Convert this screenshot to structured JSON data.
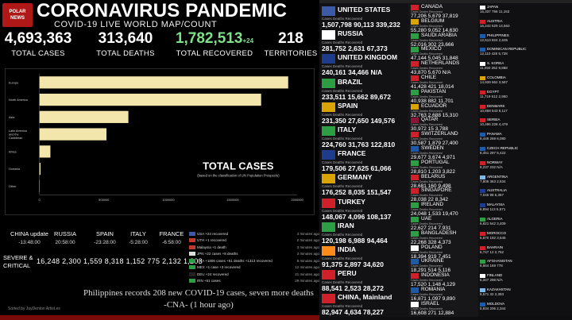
{
  "header": {
    "logo_text": "POLAR\nNEWS",
    "title": "CORONAVIRUS PANDEMIC",
    "subtitle": "COVID-19 LIVE WORLD MAP/COUNT"
  },
  "totals": {
    "cases": {
      "value": "4,693,363",
      "label": "TOTAL CASES"
    },
    "deaths": {
      "value": "313,640",
      "label": "TOTAL DEATHS"
    },
    "recovered": {
      "value": "1,782,513",
      "suffix": "+24",
      "label": "TOTAL RECOVERED"
    },
    "territories": {
      "value": "218",
      "label": "TERRITORIES"
    }
  },
  "chart_data": {
    "type": "bar",
    "orientation": "horizontal",
    "title": "TOTAL CASES",
    "subtitle": "(based on the classification of UN Population Prospects)",
    "categories": [
      "Europe",
      "North America",
      "Asia",
      "Latin America and the Caribbean",
      "Africa",
      "Oceania",
      "Other"
    ],
    "category_lines": [
      [
        "Europe"
      ],
      [
        "North America"
      ],
      [
        "Asia"
      ],
      [
        "Latin America",
        "and the",
        "Caribbean"
      ],
      [
        "Africa"
      ],
      [
        "Oceania"
      ],
      [
        "Other"
      ]
    ],
    "values": [
      1930000,
      1720000,
      690000,
      520000,
      85000,
      8500,
      700
    ],
    "xlim": [
      0,
      2000000
    ],
    "xticks": [
      "0",
      "500000",
      "1000000",
      "1500000",
      "2000000"
    ],
    "bar_color": "#f3e6ad",
    "grid": false
  },
  "updates": [
    {
      "country": "CHINA update",
      "time": "-13:48:00"
    },
    {
      "country": "RUSSIA",
      "time": "20:58:00"
    },
    {
      "country": "SPAIN",
      "time": "-23:28:00"
    },
    {
      "country": "ITALY",
      "time": "-5:28:00"
    },
    {
      "country": "FRANCE",
      "time": "-6:58:00"
    }
  ],
  "severe": {
    "label_line1": "SEVERE &",
    "label_line2": "CRITICAL",
    "values": "16,248  2,300  1,559  8,318  1,152  775  2,132  1,203"
  },
  "news": [
    {
      "text": "USA +24 recovered",
      "time": "4 minutes ago",
      "color": "#3c5aa6"
    },
    {
      "text": "UTH +1 recovered",
      "time": "2 minutes ago",
      "color": "#c0392b"
    },
    {
      "text": "Malaysia +1 death",
      "time": "3 minutes ago",
      "color": "#c0392b"
    },
    {
      "text": "JPN +22 cases +8 deaths",
      "time": "3 minutes ago",
      "color": "#dddddd"
    },
    {
      "text": "BRA +1806 cases +51 deaths +1313 recovered",
      "time": "8 minutes ago",
      "color": "#2e9e44"
    },
    {
      "text": "MEX +1 case +3 recovered",
      "time": "12 minutes ago",
      "color": "#2e9e44"
    },
    {
      "text": "DEU +24 recovered",
      "time": "21 minutes ago",
      "color": "#222222"
    },
    {
      "text": "IRN +51 cases",
      "time": "29 minutes ago",
      "color": "#2e9e44"
    }
  ],
  "headline": {
    "line1": "Philippines records 208 new COVID-19 cases, seven more deaths",
    "line2": "-CNA- (1 hour ago)"
  },
  "credit": "Sorted by JayDenton Artist.es",
  "big_countries": [
    {
      "name": "UNITED STATES",
      "labels": "Cases      Deaths     Recovered",
      "values": "1,507,798  90,113  339,232",
      "flag": "#3c5aa6"
    },
    {
      "name": "RUSSIA",
      "labels": "Cases      Deaths     Recovered",
      "values": "281,752  2,631  67,373",
      "flag": "#ffffff"
    },
    {
      "name": "UNITED KINGDOM",
      "labels": "Cases      Deaths     Recovered",
      "values": "240,161  34,466  N/A",
      "flag": "#1f3b8c"
    },
    {
      "name": "BRAZIL",
      "labels": "Cases      Deaths     Recovered",
      "values": "233,511  15,662  89,672",
      "flag": "#2e9e44"
    },
    {
      "name": "SPAIN",
      "labels": "Cases      Deaths     Recovered",
      "values": "231,350  27,650  149,576",
      "flag": "#d9a400"
    },
    {
      "name": "ITALY",
      "labels": "Cases      Deaths     Recovered",
      "values": "224,760  31,763  122,810",
      "flag": "#2e9e44"
    },
    {
      "name": "FRANCE",
      "labels": "Cases      Deaths     Recovered",
      "values": "179,506  27,625  61,066",
      "flag": "#1f3b8c"
    },
    {
      "name": "GERMANY",
      "labels": "Cases      Deaths     Recovered",
      "values": "176,252  8,035  151,547",
      "flag": "#d9a400"
    },
    {
      "name": "TURKEY",
      "labels": "Cases      Deaths     Recovered",
      "values": "148,067  4,096  108,137",
      "flag": "#d0202a"
    },
    {
      "name": "IRAN",
      "labels": "Cases      Deaths     Recovered",
      "values": "120,198  6,988  94,464",
      "flag": "#2e9e44"
    },
    {
      "name": "INDIA",
      "labels": "Cases      Deaths     Recovered",
      "values": "91,375  2,897  34,620",
      "flag": "#ff8c1a"
    },
    {
      "name": "PERU",
      "labels": "Cases      Deaths     Recovered",
      "values": "88,541  2,523  28,272",
      "flag": "#d0202a"
    },
    {
      "name": "CHINA, Mainland",
      "labels": "Cases      Deaths     Recovered",
      "values": "82,947  4,634  78,227",
      "flag": "#d0202a"
    }
  ],
  "mid_countries": [
    {
      "name": "CANADA",
      "labels": "Cases     Deaths    Recovered",
      "values": "77,206  5,679  37,819",
      "flag": "#d0202a"
    },
    {
      "name": "BELGIUM",
      "labels": "Cases     Deaths    Recovered",
      "values": "55,280  9,052  14,630",
      "flag": "#d9a400"
    },
    {
      "name": "SAUDI ARABIA",
      "labels": "Cases     Deaths    Recovered",
      "values": "52,016  302  23,666",
      "flag": "#2e9e44"
    },
    {
      "name": "MEXICO",
      "labels": "Cases     Deaths    Recovered",
      "values": "47,144  5,045  31,848",
      "flag": "#2e9e44"
    },
    {
      "name": "NETHERLANDS",
      "labels": "Cases     Deaths    Recovered",
      "values": "43,870  5,670  N/A",
      "flag": "#d0202a"
    },
    {
      "name": "CHILE",
      "labels": "Cases     Deaths    Recovered",
      "values": "41,428  421  18,014",
      "flag": "#d0202a"
    },
    {
      "name": "PAKISTAN",
      "labels": "Cases     Deaths    Recovered",
      "values": "40,938  882  11,701",
      "flag": "#2e9e44"
    },
    {
      "name": "ECUADOR",
      "labels": "Cases     Deaths    Recovered",
      "values": "32,763  2,688  15,310",
      "flag": "#d9a400"
    },
    {
      "name": "QATAR",
      "labels": "Cases     Deaths    Recovered",
      "values": "30,972  15  3,788",
      "flag": "#8a1538"
    },
    {
      "name": "SWITZERLAND",
      "labels": "Cases     Deaths    Recovered",
      "values": "30,587  1,879  27,400",
      "flag": "#d0202a"
    },
    {
      "name": "SWEDEN",
      "labels": "Cases     Deaths    Recovered",
      "values": "29,677  3,674  4,971",
      "flag": "#1f5aa6"
    },
    {
      "name": "PORTUGAL",
      "labels": "Cases     Deaths    Recovered",
      "values": "28,810  1,203  3,822",
      "flag": "#2e9e44"
    },
    {
      "name": "BELARUS",
      "labels": "Cases     Deaths    Recovered",
      "values": "28,681  160  9,498",
      "flag": "#d0202a"
    },
    {
      "name": "SINGAPORE",
      "labels": "Cases     Deaths    Recovered",
      "values": "28,038  22  8,342",
      "flag": "#d0202a"
    },
    {
      "name": "IRELAND",
      "labels": "Cases     Deaths    Recovered",
      "values": "24,048  1,533  19,470",
      "flag": "#2e9e44"
    },
    {
      "name": "UAE",
      "labels": "Cases     Deaths    Recovered",
      "values": "22,627  214  7,931",
      "flag": "#2e9e44"
    },
    {
      "name": "BANGLADESH",
      "labels": "Cases     Deaths    Recovered",
      "values": "22,268  328  4,373",
      "flag": "#2e9e44"
    },
    {
      "name": "POLAND",
      "labels": "Cases     Deaths    Recovered",
      "values": "18,394  919  7,451",
      "flag": "#ffffff"
    },
    {
      "name": "UKRAINE",
      "labels": "Cases     Deaths    Recovered",
      "values": "18,291  514  5,116",
      "flag": "#1f5aa6"
    },
    {
      "name": "INDONESIA",
      "labels": "Cases     Deaths    Recovered",
      "values": "17,520  1,148  4,129",
      "flag": "#d0202a"
    },
    {
      "name": "ROMANIA",
      "labels": "Cases     Deaths    Recovered",
      "values": "16,871  1,097  9,890",
      "flag": "#1f5aa6"
    },
    {
      "name": "ISRAEL",
      "labels": "Cases     Deaths    Recovered",
      "values": "16,608  271  12,884",
      "flag": "#ffffff"
    }
  ],
  "small_countries": [
    {
      "name": "JAPAN",
      "values": "16,337  756  11,153",
      "flag": "#ffffff"
    },
    {
      "name": "AUSTRIA",
      "values": "16,242  629  14,563",
      "flag": "#d0202a"
    },
    {
      "name": "PHILIPPINES",
      "values": "12,513  824  2,635",
      "flag": "#1f5aa6"
    },
    {
      "name": "DOMINICAN REPUBLIC",
      "values": "12,110  428  5,728",
      "flag": "#1f5aa6"
    },
    {
      "name": "S. KOREA",
      "values": "11,050  262  9,888",
      "flag": "#ffffff"
    },
    {
      "name": "COLOMBIA",
      "values": "14,939  562  3,587",
      "flag": "#d9a400"
    },
    {
      "name": "EGYPT",
      "values": "11,719  612  2,950",
      "flag": "#d0202a"
    },
    {
      "name": "DENMARK",
      "values": "10,858  543  9,117",
      "flag": "#d0202a"
    },
    {
      "name": "SERBIA",
      "values": "10,496  228  4,479",
      "flag": "#d0202a"
    },
    {
      "name": "PANAMA",
      "values": "9,449  269  6,080",
      "flag": "#1f5aa6"
    },
    {
      "name": "CZECH REPUBLIC",
      "values": "8,451  297  5,422",
      "flag": "#1f5aa6"
    },
    {
      "name": "NORWAY",
      "values": "8,237  232  N/A",
      "flag": "#d0202a"
    },
    {
      "name": "ARGENTINA",
      "values": "7,805  363  2,534",
      "flag": "#7fb8e6"
    },
    {
      "name": "AUSTRALIA",
      "values": "7,045  98  6,367",
      "flag": "#1f3b8c"
    },
    {
      "name": "MALAYSIA",
      "values": "6,894  113  5,571",
      "flag": "#1f3b8c"
    },
    {
      "name": "ALGERIA",
      "values": "6,821  542  3,409",
      "flag": "#2e9e44"
    },
    {
      "name": "MOROCCO",
      "values": "6,870  192  3,645",
      "flag": "#d0202a"
    },
    {
      "name": "BAHRAIN",
      "values": "6,747  12  2,762",
      "flag": "#d0202a"
    },
    {
      "name": "AFGHANISTAN",
      "values": "6,664  169  778",
      "flag": "#2e9e44"
    },
    {
      "name": "FINLAND",
      "values": "6,347  298  N/A",
      "flag": "#ffffff"
    },
    {
      "name": "KAZAKHSTAN",
      "values": "5,571  32  2,393",
      "flag": "#7fb8e6"
    },
    {
      "name": "MOLDOVA",
      "values": "5,934  206  2,344",
      "flag": "#1f5aa6"
    }
  ]
}
